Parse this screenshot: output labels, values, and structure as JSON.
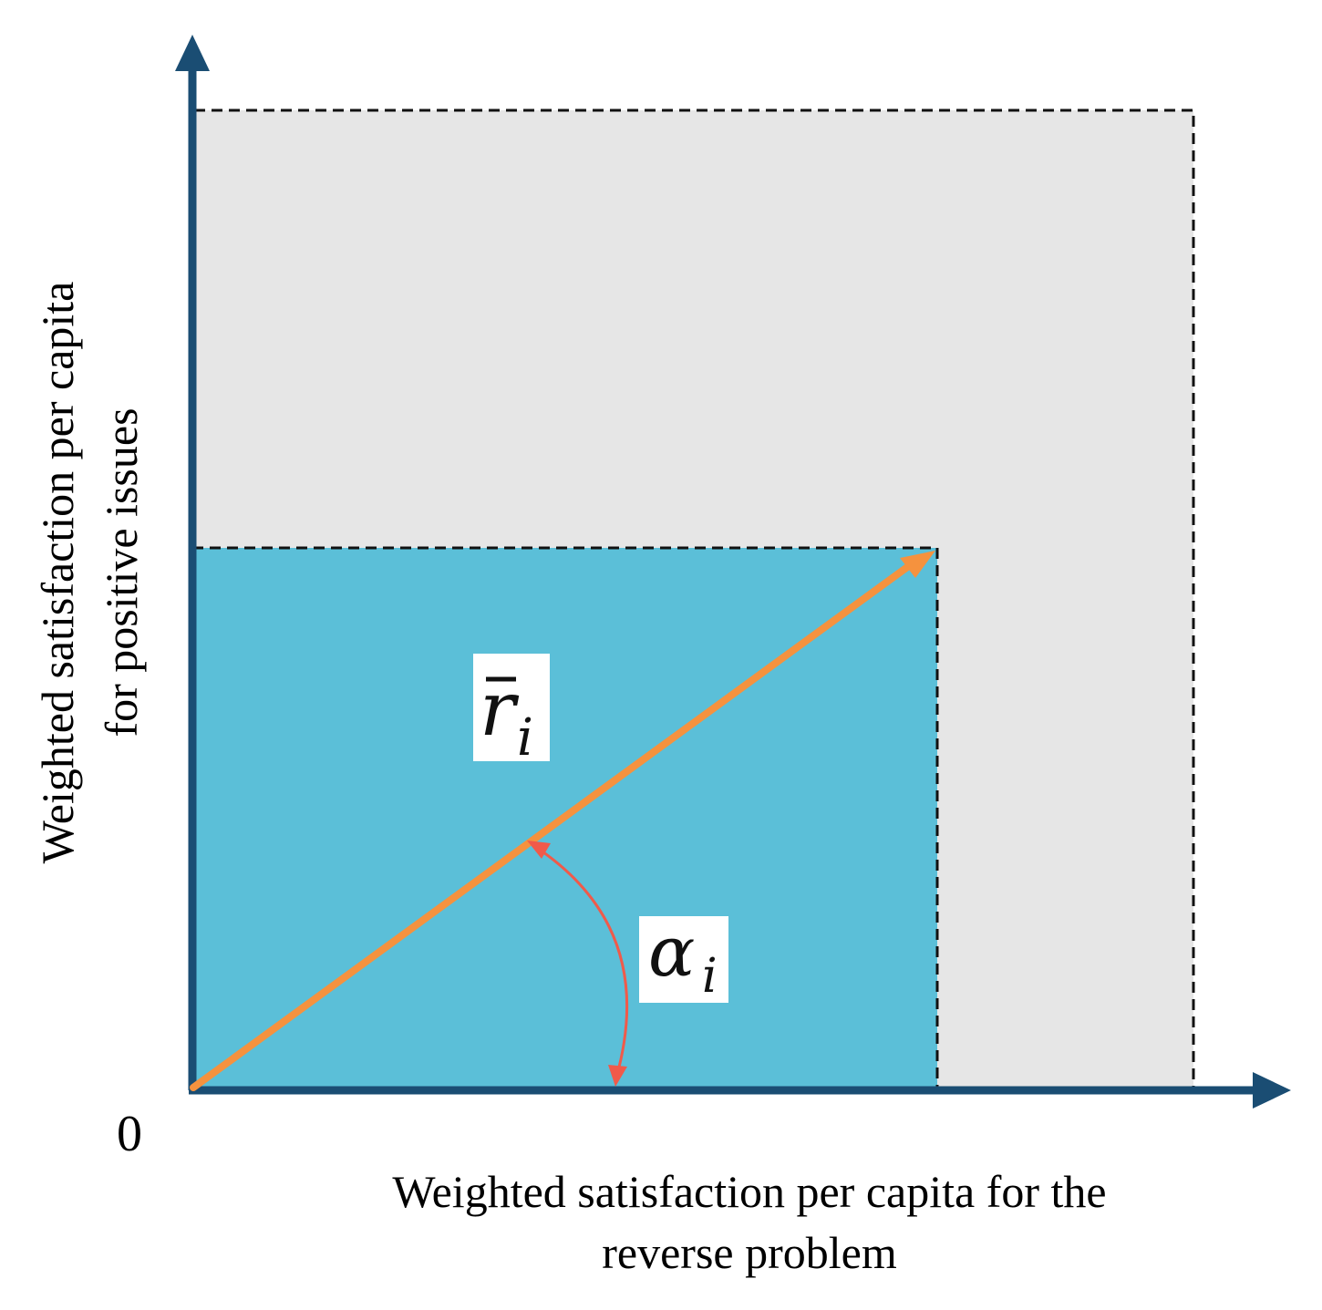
{
  "axes": {
    "origin_label": "0",
    "x_label_lines": [
      "Weighted satisfaction per capita for the",
      "reverse problem"
    ],
    "y_label_lines": [
      "Weighted satisfaction per capita",
      "for positive issues"
    ]
  },
  "labels": {
    "vector_symbol": "r",
    "vector_subscript": "i",
    "angle_symbol": "α",
    "angle_subscript": "i"
  },
  "colors": {
    "axis": "#1a4d73",
    "outer_region": "#e6e6e6",
    "inner_region": "#5bbfd8",
    "vector": "#f5923e",
    "angle_arc": "#f05a4a",
    "dashed_border": "#111111"
  }
}
